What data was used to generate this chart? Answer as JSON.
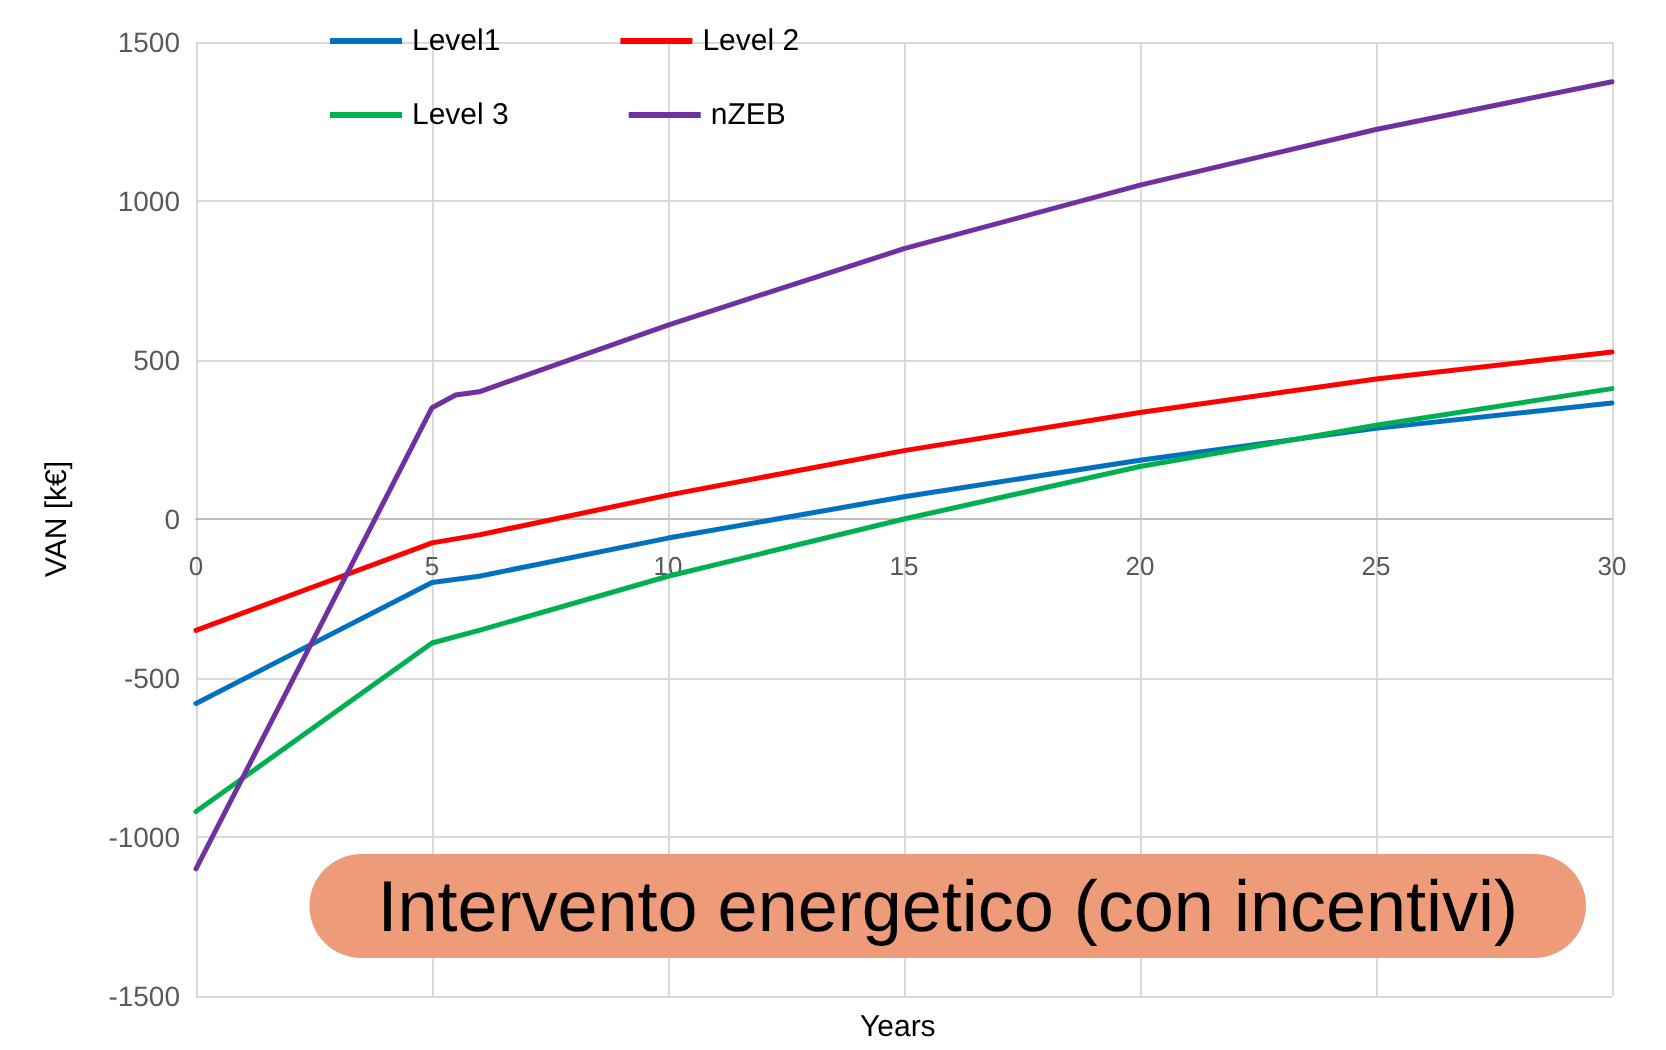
{
  "chart_data": {
    "type": "line",
    "xlabel": "Years",
    "ylabel": "VAN [k€]",
    "annotations": [
      "Intervento energetico (con incentivi)"
    ],
    "xlim": [
      0,
      30
    ],
    "xticks": [
      0,
      5,
      10,
      15,
      20,
      25,
      30
    ],
    "ylim": [
      -1500,
      1500
    ],
    "yticks": [
      -1500,
      -1000,
      -500,
      0,
      500,
      1000,
      1500
    ],
    "grid": true,
    "legend": "top",
    "marker": "none",
    "line_style": "solid",
    "series": [
      {
        "name": "Level1",
        "color": "#0070c0",
        "x": [
          0,
          5,
          6,
          10,
          15,
          20,
          25,
          30
        ],
        "values": [
          -580,
          -200,
          -180,
          -60,
          70,
          185,
          285,
          365
        ]
      },
      {
        "name": "Level 2",
        "color": "#ff0000",
        "x": [
          0,
          5,
          6,
          10,
          15,
          20,
          25,
          30
        ],
        "values": [
          -350,
          -75,
          -50,
          75,
          215,
          335,
          440,
          525
        ]
      },
      {
        "name": "Level 3",
        "color": "#00b050",
        "x": [
          0,
          5,
          6,
          10,
          15,
          20,
          25,
          30
        ],
        "values": [
          -920,
          -390,
          -350,
          -180,
          0,
          165,
          295,
          410
        ]
      },
      {
        "name": "nZEB",
        "color": "#7030a0",
        "x": [
          0,
          5,
          5.5,
          6,
          10,
          15,
          20,
          25,
          30
        ],
        "values": [
          -1100,
          350,
          390,
          400,
          610,
          850,
          1050,
          1225,
          1375
        ]
      }
    ]
  }
}
